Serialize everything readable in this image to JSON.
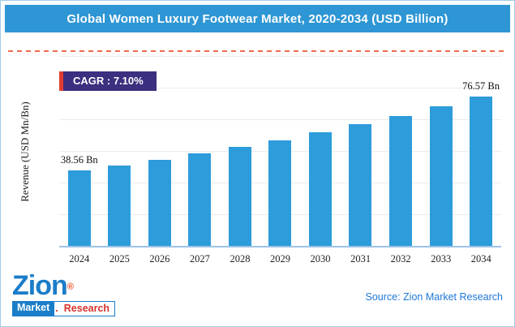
{
  "header": {
    "title": "Global Women Luxury Footwear Market, 2020-2034 (USD Billion)"
  },
  "badge": {
    "label": "CAGR : 7.10%"
  },
  "chart_data": {
    "type": "bar",
    "title": "Global Women Luxury Footwear Market, 2020-2034 (USD Billion)",
    "xlabel": "",
    "ylabel": "Revenue (USD Mn/Bn)",
    "categories": [
      "2024",
      "2025",
      "2026",
      "2027",
      "2028",
      "2029",
      "2030",
      "2031",
      "2032",
      "2033",
      "2034"
    ],
    "values": [
      38.56,
      41.3,
      44.23,
      47.37,
      50.73,
      54.34,
      58.19,
      62.33,
      66.75,
      71.49,
      76.57
    ],
    "data_labels": [
      "38.56 Bn",
      "",
      "",
      "",
      "",
      "",
      "",
      "",
      "",
      "",
      "76.57 Bn"
    ],
    "cagr": "7.10%",
    "ylim": [
      0,
      80
    ],
    "grid": "horizontal",
    "legend": "none",
    "bar_color": "#2d9cdb"
  },
  "footer": {
    "source": "Source: Zion Market Research",
    "logo": {
      "brand": "Zion",
      "reg": "®",
      "market": "Market",
      "dot": ".",
      "research": "Research"
    }
  },
  "colors": {
    "header_bg": "#2e96d4",
    "bar": "#2d9cdb",
    "badge_bg": "#3b2f80",
    "badge_accent": "#e03c31",
    "divider_dashed": "#ef6a4d",
    "axis_line": "#9dc3e6",
    "source_text": "#1e78d7",
    "logo_blue": "#1a7dc9",
    "logo_red": "#d6342c"
  }
}
